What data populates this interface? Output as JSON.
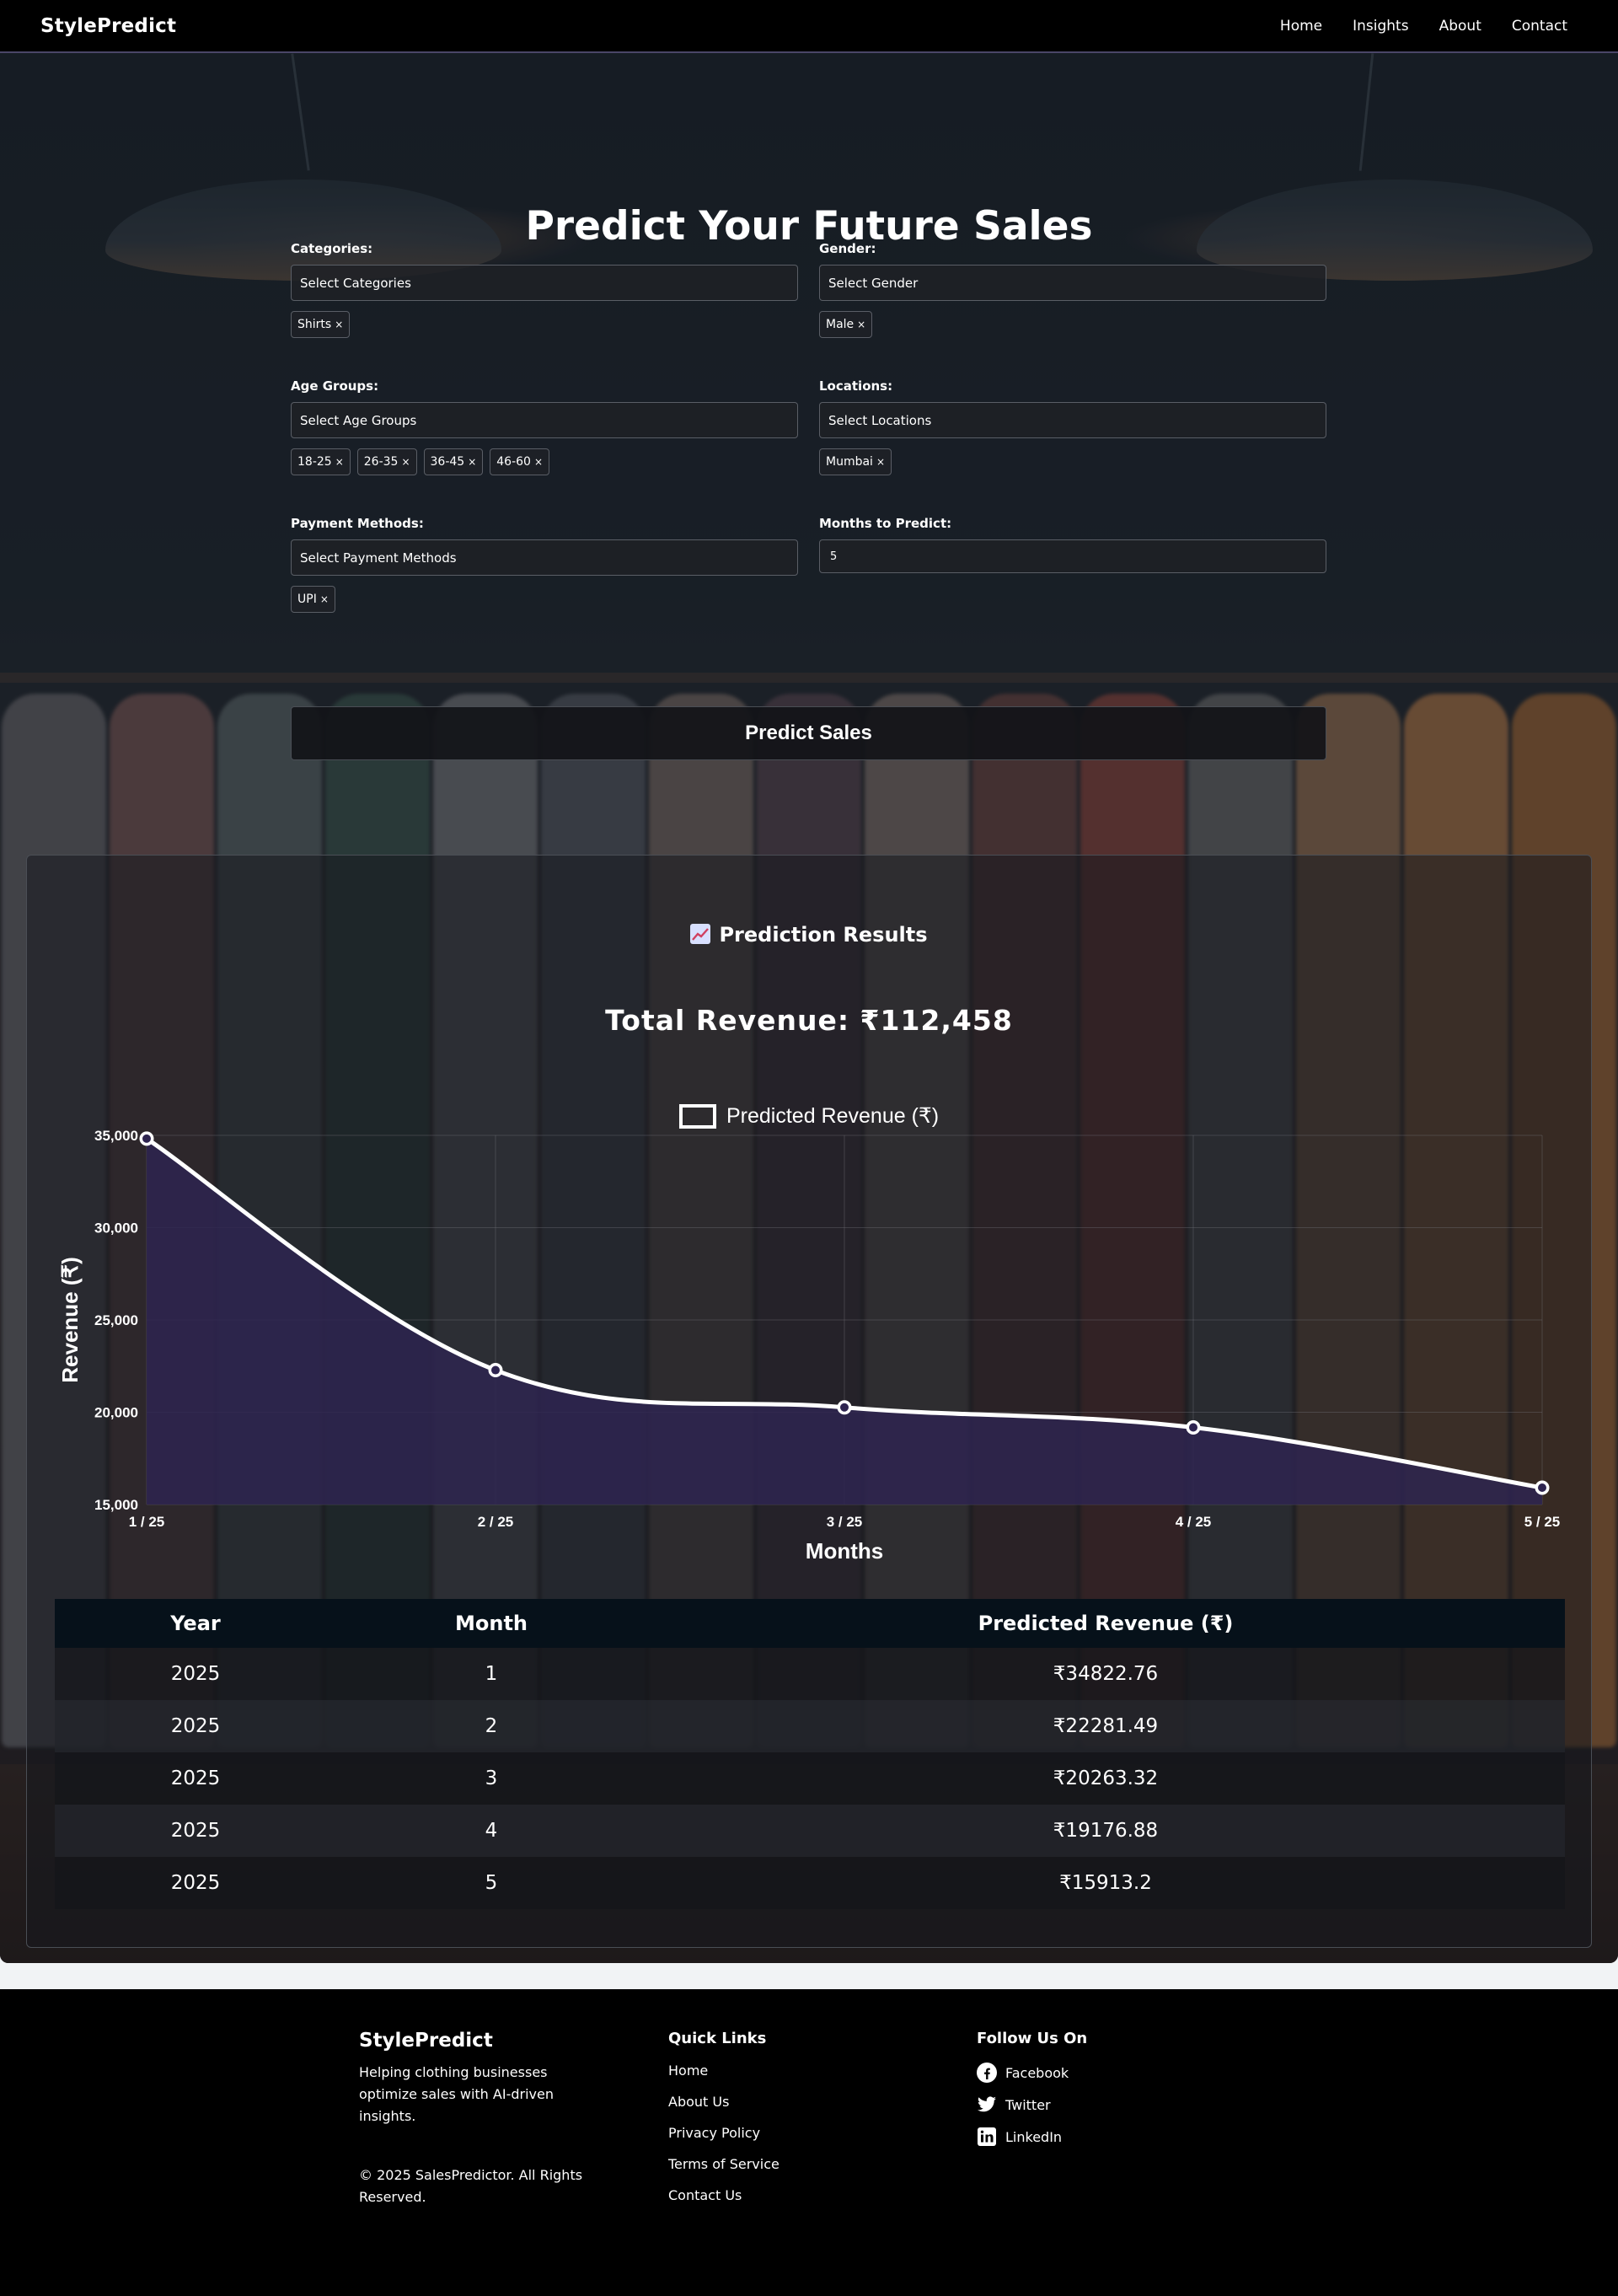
{
  "nav": {
    "brand": "StylePredict",
    "links": [
      "Home",
      "Insights",
      "About",
      "Contact"
    ]
  },
  "form": {
    "title": "Predict Your Future Sales",
    "categories": {
      "label": "Categories:",
      "placeholder": "Select Categories",
      "selected": [
        "Shirts"
      ]
    },
    "gender": {
      "label": "Gender:",
      "placeholder": "Select Gender",
      "selected": [
        "Male"
      ]
    },
    "age_groups": {
      "label": "Age Groups:",
      "placeholder": "Select Age Groups",
      "selected": [
        "18-25",
        "26-35",
        "36-45",
        "46-60"
      ]
    },
    "locations": {
      "label": "Locations:",
      "placeholder": "Select Locations",
      "selected": [
        "Mumbai"
      ]
    },
    "payment_methods": {
      "label": "Payment Methods:",
      "placeholder": "Select Payment Methods",
      "selected": [
        "UPI"
      ]
    },
    "months": {
      "label": "Months to Predict:",
      "value": "5"
    },
    "tag_remove_glyph": "×",
    "submit_label": "Predict Sales"
  },
  "results": {
    "heading": "Prediction Results",
    "heading_icon": "chart-increasing-icon",
    "total": "Total Revenue: ₹112,458"
  },
  "chart_data": {
    "type": "line",
    "categories": [
      "1 / 25",
      "2 / 25",
      "3 / 25",
      "4 / 25",
      "5 / 25"
    ],
    "series": [
      {
        "name": "Predicted Revenue (₹)",
        "values": [
          34822.76,
          22281.49,
          20263.32,
          19176.88,
          15913.2
        ]
      }
    ],
    "xlabel": "Months",
    "ylabel": "Revenue (₹)",
    "ylim": [
      15000,
      35000
    ],
    "yticks": [
      "15,000",
      "20,000",
      "25,000",
      "30,000",
      "35,000"
    ],
    "area_fill": "#2e2450",
    "line_color": "#ffffff",
    "grid": true,
    "legend": "top-center"
  },
  "table": {
    "headers": [
      "Year",
      "Month",
      "Predicted Revenue (₹)"
    ],
    "rows": [
      [
        "2025",
        "1",
        "₹34822.76"
      ],
      [
        "2025",
        "2",
        "₹22281.49"
      ],
      [
        "2025",
        "3",
        "₹20263.32"
      ],
      [
        "2025",
        "4",
        "₹19176.88"
      ],
      [
        "2025",
        "5",
        "₹15913.2"
      ]
    ]
  },
  "footer": {
    "brand": "StylePredict",
    "tagline": "Helping clothing businesses optimize sales with AI-driven insights.",
    "copyright": "© 2025 SalesPredictor. All Rights Reserved.",
    "quick_links_title": "Quick Links",
    "quick_links": [
      "Home",
      "About Us",
      "Privacy Policy",
      "Terms of Service",
      "Contact Us"
    ],
    "follow_title": "Follow Us On",
    "social": [
      {
        "label": "Facebook",
        "icon": "facebook-icon"
      },
      {
        "label": "Twitter",
        "icon": "twitter-icon"
      },
      {
        "label": "LinkedIn",
        "icon": "linkedin-icon"
      }
    ]
  }
}
